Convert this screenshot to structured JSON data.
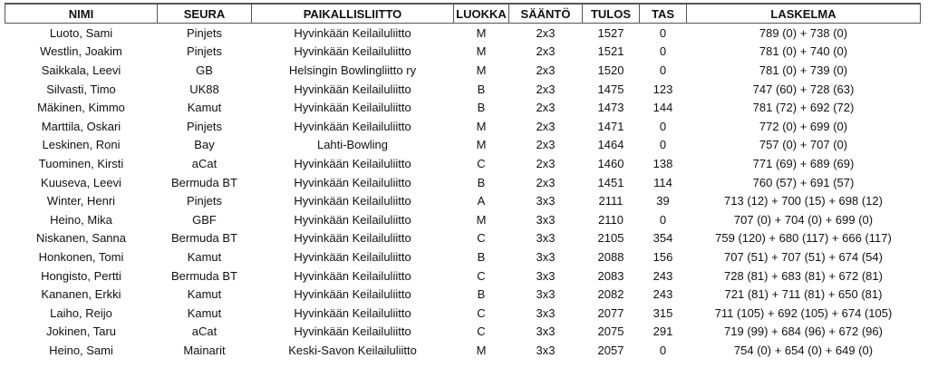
{
  "headers": [
    "NIMI",
    "SEURA",
    "PAIKALLISLIITTO",
    "LUOKKA",
    "SÄÄNTÖ",
    "TULOS",
    "TAS",
    "LASKELMA"
  ],
  "rows": [
    [
      "Luoto, Sami",
      "Pinjets",
      "Hyvinkään Keilailuliitto",
      "M",
      "2x3",
      "1527",
      "0",
      "789 (0) + 738 (0)"
    ],
    [
      "Westlin, Joakim",
      "Pinjets",
      "Hyvinkään Keilailuliitto",
      "M",
      "2x3",
      "1521",
      "0",
      "781 (0) + 740 (0)"
    ],
    [
      "Saikkala, Leevi",
      "GB",
      "Helsingin Bowlingliitto ry",
      "M",
      "2x3",
      "1520",
      "0",
      "781 (0) + 739 (0)"
    ],
    [
      "Silvasti, Timo",
      "UK88",
      "Hyvinkään Keilailuliitto",
      "B",
      "2x3",
      "1475",
      "123",
      "747 (60) + 728 (63)"
    ],
    [
      "Mäkinen, Kimmo",
      "Kamut",
      "Hyvinkään Keilailuliitto",
      "B",
      "2x3",
      "1473",
      "144",
      "781 (72) + 692 (72)"
    ],
    [
      "Marttila, Oskari",
      "Pinjets",
      "Hyvinkään Keilailuliitto",
      "M",
      "2x3",
      "1471",
      "0",
      "772 (0) + 699 (0)"
    ],
    [
      "Leskinen, Roni",
      "Bay",
      "Lahti-Bowling",
      "M",
      "2x3",
      "1464",
      "0",
      "757 (0) + 707 (0)"
    ],
    [
      "Tuominen, Kirsti",
      "aCat",
      "Hyvinkään Keilailuliitto",
      "C",
      "2x3",
      "1460",
      "138",
      "771 (69) + 689 (69)"
    ],
    [
      "Kuuseva, Leevi",
      "Bermuda BT",
      "Hyvinkään Keilailuliitto",
      "B",
      "2x3",
      "1451",
      "114",
      "760 (57) + 691 (57)"
    ],
    [
      "Winter, Henri",
      "Pinjets",
      "Hyvinkään Keilailuliitto",
      "A",
      "3x3",
      "2111",
      "39",
      "713 (12) + 700 (15) + 698 (12)"
    ],
    [
      "Heino, Mika",
      "GBF",
      "Hyvinkään Keilailuliitto",
      "M",
      "3x3",
      "2110",
      "0",
      "707 (0) + 704 (0) + 699 (0)"
    ],
    [
      "Niskanen, Sanna",
      "Bermuda BT",
      "Hyvinkään Keilailuliitto",
      "C",
      "3x3",
      "2105",
      "354",
      "759 (120) + 680 (117) + 666 (117)"
    ],
    [
      "Honkonen, Tomi",
      "Kamut",
      "Hyvinkään Keilailuliitto",
      "B",
      "3x3",
      "2088",
      "156",
      "707 (51) + 707 (51) + 674 (54)"
    ],
    [
      "Hongisto, Pertti",
      "Bermuda BT",
      "Hyvinkään Keilailuliitto",
      "C",
      "3x3",
      "2083",
      "243",
      "728 (81) + 683 (81) + 672 (81)"
    ],
    [
      "Kananen, Erkki",
      "Kamut",
      "Hyvinkään Keilailuliitto",
      "B",
      "3x3",
      "2082",
      "243",
      "721 (81) + 711 (81) + 650 (81)"
    ],
    [
      "Laiho, Reijo",
      "Kamut",
      "Hyvinkään Keilailuliitto",
      "C",
      "3x3",
      "2077",
      "315",
      "711 (105) + 692 (105) + 674 (105)"
    ],
    [
      "Jokinen, Taru",
      "aCat",
      "Hyvinkään Keilailuliitto",
      "C",
      "3x3",
      "2075",
      "291",
      "719 (99) + 684 (96) + 672 (96)"
    ],
    [
      "Heino, Sami",
      "Mainarit",
      "Keski-Savon Keilailuliitto",
      "M",
      "3x3",
      "2057",
      "0",
      "754 (0) + 654 (0) + 649 (0)"
    ]
  ]
}
